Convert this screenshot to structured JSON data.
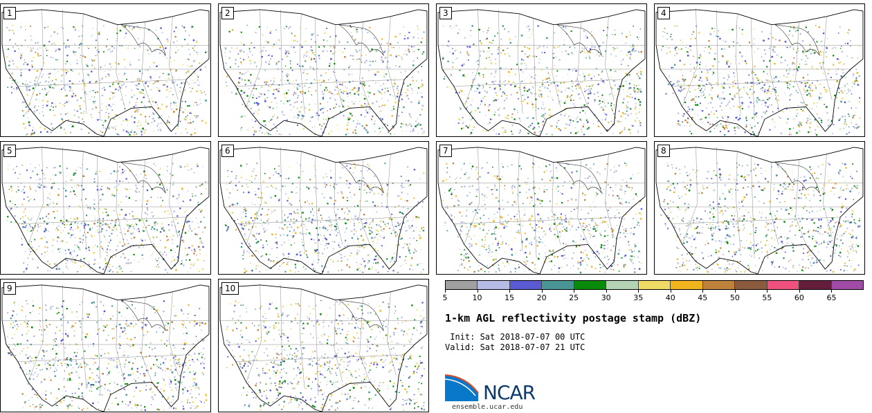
{
  "panels": [
    {
      "label": "1"
    },
    {
      "label": "2"
    },
    {
      "label": "3"
    },
    {
      "label": "4"
    },
    {
      "label": "5"
    },
    {
      "label": "6"
    },
    {
      "label": "7"
    },
    {
      "label": "8"
    },
    {
      "label": "9"
    },
    {
      "label": "10"
    }
  ],
  "colorbar": {
    "colors": [
      "#a0a0a0",
      "#b4bce6",
      "#5a5ad2",
      "#4a9696",
      "#0a8a0a",
      "#b4d2b4",
      "#f0dc64",
      "#f0b41e",
      "#be823c",
      "#8c5a3c",
      "#f0507d",
      "#641e3c",
      "#a04ba5"
    ],
    "ticks": [
      "5",
      "10",
      "15",
      "20",
      "25",
      "30",
      "35",
      "40",
      "45",
      "50",
      "55",
      "60",
      "65"
    ]
  },
  "title": "1-km AGL reflectivity postage stamp (dBZ)",
  "init_line": " Init: Sat 2018-07-07 00 UTC",
  "valid_line": "Valid: Sat 2018-07-07 21 UTC",
  "logo": {
    "text": "NCAR",
    "site": "ensemble.ucar.edu"
  }
}
